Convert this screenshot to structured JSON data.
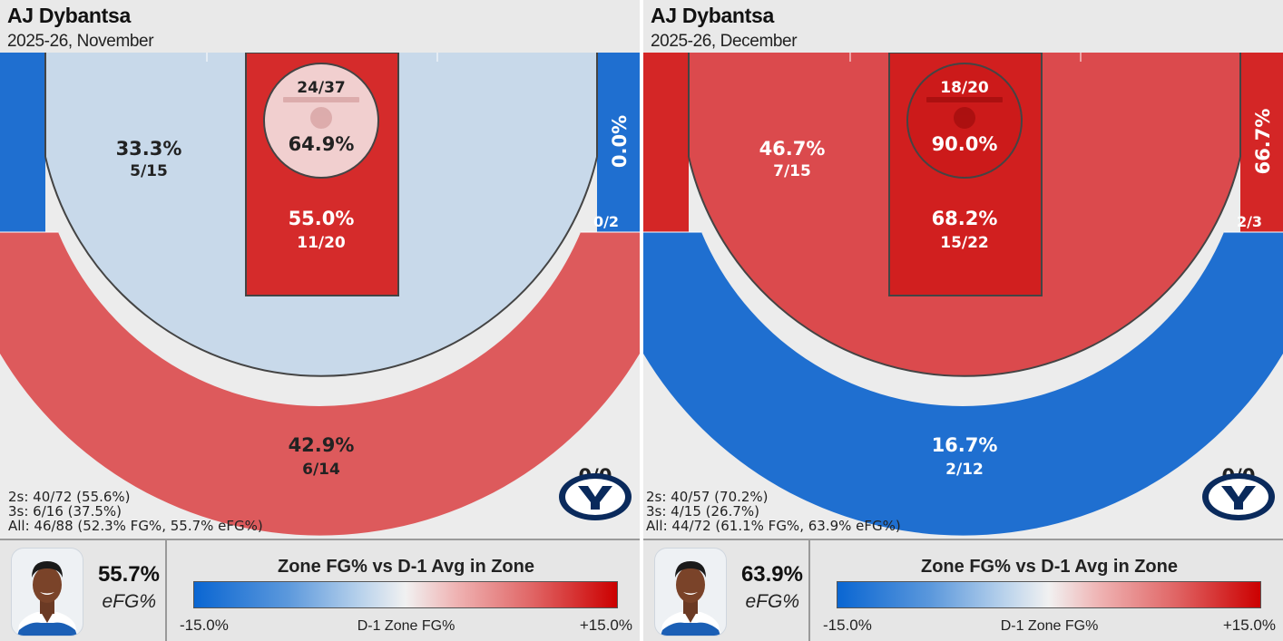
{
  "panels": [
    {
      "player": "AJ Dybantsa",
      "period": "2025-26, November",
      "efg_value": "55.7%",
      "efg_label": "eFG%",
      "summary": [
        "2s: 40/72 (55.6%)",
        "3s: 6/16 (37.5%)",
        "All: 46/88 (52.3% FG%, 55.7% eFG%)"
      ],
      "zones": {
        "rim": {
          "pct": "64.9%",
          "made_att": "24/37",
          "color": "#f1cfcf"
        },
        "paint": {
          "pct": "55.0%",
          "made_att": "11/20",
          "color": "#d52b2b"
        },
        "midrange": {
          "pct": "33.3%",
          "made_att": "5/15",
          "color": "#c8d9ea"
        },
        "left_corner": {
          "pct": "",
          "made_att": "",
          "color": "#1f6fd0"
        },
        "right_corner": {
          "pct": "0.0%",
          "made_att": "0/2",
          "color": "#1f6fd0"
        },
        "above_break": {
          "pct": "42.9%",
          "made_att": "6/14",
          "color": "#dd5a5c"
        },
        "deep": {
          "pct": "",
          "made_att": "0/0",
          "color": "#ececec"
        }
      }
    },
    {
      "player": "AJ Dybantsa",
      "period": "2025-26, December",
      "efg_value": "63.9%",
      "efg_label": "eFG%",
      "summary": [
        "2s: 40/57 (70.2%)",
        "3s: 4/15 (26.7%)",
        "All: 44/72 (61.1% FG%, 63.9% eFG%)"
      ],
      "zones": {
        "rim": {
          "pct": "90.0%",
          "made_att": "18/20",
          "color": "#cc1a1a"
        },
        "paint": {
          "pct": "68.2%",
          "made_att": "15/22",
          "color": "#d11f1f"
        },
        "midrange": {
          "pct": "46.7%",
          "made_att": "7/15",
          "color": "#db4a4d"
        },
        "left_corner": {
          "pct": "",
          "made_att": "",
          "color": "#d42626"
        },
        "right_corner": {
          "pct": "66.7%",
          "made_att": "2/3",
          "color": "#d42626"
        },
        "above_break": {
          "pct": "16.7%",
          "made_att": "2/12",
          "color": "#1f6fd0"
        },
        "deep": {
          "pct": "",
          "made_att": "0/0",
          "color": "#ececec"
        }
      }
    }
  ],
  "legend": {
    "title": "Zone FG% vs D-1 Avg in Zone",
    "min": "-15.0%",
    "mid": "D-1 Zone FG%",
    "max": "+15.0%"
  },
  "chart_data": [
    {
      "type": "heatmap",
      "title": "AJ Dybantsa",
      "subtitle": "2025-26, November",
      "zones": [
        {
          "zone": "rim",
          "made": 24,
          "attempts": 37,
          "fg_pct": 64.9
        },
        {
          "zone": "paint",
          "made": 11,
          "attempts": 20,
          "fg_pct": 55.0
        },
        {
          "zone": "midrange",
          "made": 5,
          "attempts": 15,
          "fg_pct": 33.3
        },
        {
          "zone": "right_corner_3",
          "made": 0,
          "attempts": 2,
          "fg_pct": 0.0
        },
        {
          "zone": "above_break_3",
          "made": 6,
          "attempts": 14,
          "fg_pct": 42.9
        },
        {
          "zone": "deep_3",
          "made": 0,
          "attempts": 0
        }
      ],
      "efg_pct": 55.7,
      "color_scale": {
        "label": "D-1 Zone FG%",
        "min": -15.0,
        "max": 15.0,
        "low_color": "#0a66d2",
        "high_color": "#cc0000"
      }
    },
    {
      "type": "heatmap",
      "title": "AJ Dybantsa",
      "subtitle": "2025-26, December",
      "zones": [
        {
          "zone": "rim",
          "made": 18,
          "attempts": 20,
          "fg_pct": 90.0
        },
        {
          "zone": "paint",
          "made": 15,
          "attempts": 22,
          "fg_pct": 68.2
        },
        {
          "zone": "midrange",
          "made": 7,
          "attempts": 15,
          "fg_pct": 46.7
        },
        {
          "zone": "right_corner_3",
          "made": 2,
          "attempts": 3,
          "fg_pct": 66.7
        },
        {
          "zone": "above_break_3",
          "made": 2,
          "attempts": 12,
          "fg_pct": 16.7
        },
        {
          "zone": "deep_3",
          "made": 0,
          "attempts": 0
        }
      ],
      "efg_pct": 63.9,
      "color_scale": {
        "label": "D-1 Zone FG%",
        "min": -15.0,
        "max": 15.0,
        "low_color": "#0a66d2",
        "high_color": "#cc0000"
      }
    }
  ],
  "colors": {
    "byu_navy": "#0a2a5c",
    "line": "#444444"
  },
  "icons": {
    "logo": "byu-logo",
    "photo": "player-photo"
  }
}
